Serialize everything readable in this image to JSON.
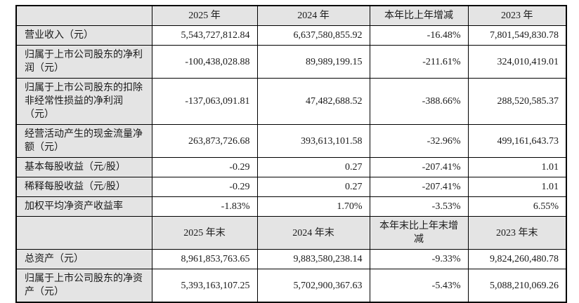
{
  "table": {
    "period_header": {
      "label": "",
      "cols": [
        "2025 年",
        "2024 年",
        "本年比上年增减",
        "2023 年"
      ]
    },
    "period_rows": [
      {
        "label": "营业收入（元）",
        "values": [
          "5,543,727,812.84",
          "6,637,580,855.92",
          "-16.48%",
          "7,801,549,830.78"
        ]
      },
      {
        "label": "归属于上市公司股东的净利润（元）",
        "values": [
          "-100,438,028.88",
          "89,989,199.15",
          "-211.61%",
          "324,010,419.01"
        ]
      },
      {
        "label": "归属于上市公司股东的扣除非经常性损益的净利润（元）",
        "values": [
          "-137,063,091.81",
          "47,482,688.52",
          "-388.66%",
          "288,520,585.37"
        ]
      },
      {
        "label": "经营活动产生的现金流量净额（元）",
        "values": [
          "263,873,726.68",
          "393,613,101.58",
          "-32.96%",
          "499,161,643.73"
        ]
      },
      {
        "label": "基本每股收益（元/股）",
        "values": [
          "-0.29",
          "0.27",
          "-207.41%",
          "1.01"
        ]
      },
      {
        "label": "稀释每股收益（元/股）",
        "values": [
          "-0.29",
          "0.27",
          "-207.41%",
          "1.01"
        ]
      },
      {
        "label": "加权平均净资产收益率",
        "values": [
          "-1.83%",
          "1.70%",
          "-3.53%",
          "6.55%"
        ]
      }
    ],
    "point_header": {
      "label": "",
      "cols": [
        "2025 年末",
        "2024 年末",
        "本年末比上年末增减",
        "2023 年末"
      ]
    },
    "point_rows": [
      {
        "label": "总资产（元）",
        "values": [
          "8,961,853,763.65",
          "9,883,580,238.14",
          "-9.33%",
          "9,824,260,480.78"
        ]
      },
      {
        "label": "归属于上市公司股东的净资产（元）",
        "values": [
          "5,393,163,107.25",
          "5,702,900,367.63",
          "-5.43%",
          "5,088,210,069.26"
        ]
      }
    ]
  },
  "colors": {
    "header_bg": "#e4e4e4",
    "label_bg": "#e4e4e4",
    "border": "#000000",
    "page_bg": "#ffffff"
  }
}
